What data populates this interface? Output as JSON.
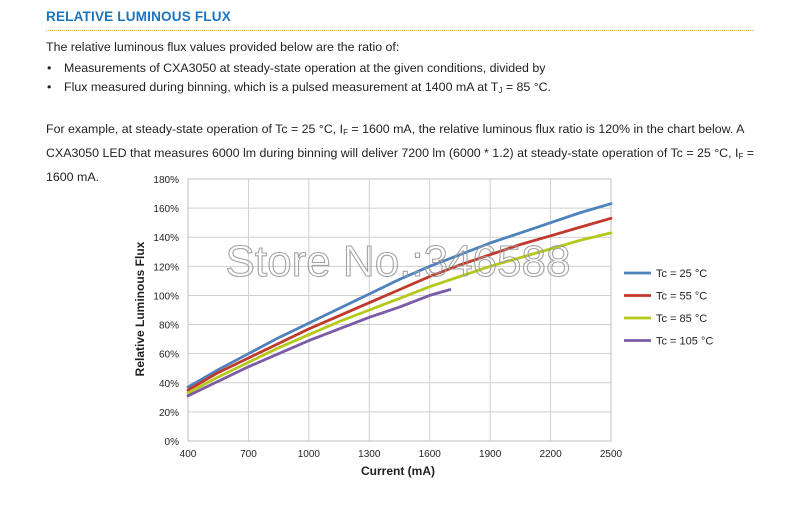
{
  "section": {
    "heading": "RELATIVE LUMINOUS FLUX",
    "intro": "The relative luminous flux values provided below are the ratio of:",
    "bullets": [
      {
        "marker": "•",
        "text": "Measurements of CXA3050 at steady-state operation at the given conditions, divided by"
      },
      {
        "marker": "•",
        "text_before": "Flux measured during binning, which is a pulsed measurement at 1400 mA at T",
        "sub": "J",
        "text_after": " = 85 °C."
      }
    ],
    "example": {
      "s1": "For example, at steady-state operation of Tc = 25 °C, I",
      "sub1": "F",
      "s2": " = 1600 mA, the relative luminous flux ratio is 120% in the chart below. A CXA3050 LED that measures 6000 lm during binning will deliver 7200 lm (6000 * 1.2) at steady-state operation of Tc = 25 °C, I",
      "sub2": "F",
      "s3": " = 1600 mA."
    }
  },
  "watermark": "Store No.:346588",
  "chart_data": {
    "type": "line",
    "xlabel": "Current (mA)",
    "ylabel": "Relative Luminous Flux",
    "xlim": [
      400,
      2500
    ],
    "ylim": [
      0,
      180
    ],
    "x_ticks": [
      400,
      700,
      1000,
      1300,
      1600,
      1900,
      2200,
      2500
    ],
    "y_ticks": [
      0,
      20,
      40,
      60,
      80,
      100,
      120,
      140,
      160,
      180
    ],
    "y_tick_suffix": "%",
    "grid": true,
    "legend_position": "right",
    "series": [
      {
        "name": "Tc = 25 °C",
        "color": "#4f81bd",
        "x": [
          400,
          550,
          700,
          850,
          1000,
          1150,
          1300,
          1450,
          1600,
          1750,
          1900,
          2050,
          2200,
          2350,
          2500
        ],
        "y": [
          37,
          49,
          60,
          71,
          81,
          91,
          101,
          111,
          120,
          128,
          136,
          143,
          150,
          157,
          163
        ]
      },
      {
        "name": "Tc = 55 °C",
        "color": "#c0392b",
        "x": [
          400,
          550,
          700,
          850,
          1000,
          1150,
          1300,
          1450,
          1600,
          1750,
          1900,
          2050,
          2200,
          2350,
          2500
        ],
        "y": [
          35,
          47,
          57,
          67,
          77,
          86,
          95,
          104,
          113,
          121,
          128,
          135,
          141,
          147,
          153
        ]
      },
      {
        "name": "Tc = 85 °C",
        "color": "#b5c91b",
        "x": [
          400,
          550,
          700,
          850,
          1000,
          1150,
          1300,
          1450,
          1600,
          1750,
          1900,
          2050,
          2200,
          2350,
          2500
        ],
        "y": [
          33,
          44,
          54,
          64,
          73,
          82,
          90,
          98,
          106,
          113,
          120,
          126,
          132,
          138,
          143
        ]
      },
      {
        "name": "Tc = 105 °C",
        "color": "#7b5aa6",
        "x": [
          400,
          550,
          700,
          850,
          1000,
          1150,
          1300,
          1450,
          1600,
          1700
        ],
        "y": [
          31,
          41,
          51,
          60,
          69,
          77,
          85,
          92,
          100,
          104
        ]
      }
    ]
  }
}
